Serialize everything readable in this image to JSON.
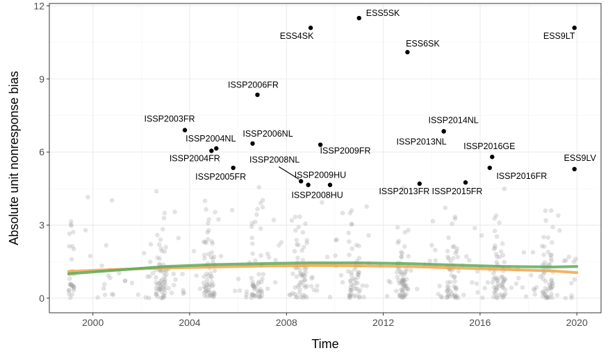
{
  "chart_data": {
    "type": "scatter",
    "title": "",
    "xlabel": "Time",
    "ylabel": "Absolute unit nonresponse bias",
    "xlim": [
      1998.2,
      2021.0
    ],
    "ylim": [
      -0.6,
      12.1
    ],
    "x_ticks": [
      2000,
      2004,
      2008,
      2012,
      2016,
      2020
    ],
    "y_ticks": [
      0,
      3,
      6,
      9,
      12
    ],
    "x_tick_labels": [
      "2000",
      "2004",
      "2008",
      "2012",
      "2016",
      "2020"
    ],
    "y_tick_labels": [
      "0",
      "3",
      "6",
      "9",
      "12"
    ],
    "grid": true,
    "legend": "none",
    "colors": {
      "background_points": "#999999",
      "highlight_points": "#000000",
      "smooth_orange": "#f5a54a",
      "smooth_green": "#5aaa5a",
      "grid_major": "#ebebeb",
      "panel_border": "#333333"
    },
    "labeled_points": [
      {
        "label": "ESS5SK",
        "x": 2011.0,
        "y": 11.5
      },
      {
        "label": "ESS4SK",
        "x": 2009.0,
        "y": 11.1
      },
      {
        "label": "ESS9LT",
        "x": 2019.9,
        "y": 11.1
      },
      {
        "label": "ESS6SK",
        "x": 2013.0,
        "y": 10.1
      },
      {
        "label": "ISSP2006FR",
        "x": 2006.8,
        "y": 8.35
      },
      {
        "label": "ISSP2003FR",
        "x": 2003.8,
        "y": 6.9
      },
      {
        "label": "ISSP2014NL",
        "x": 2014.5,
        "y": 6.85
      },
      {
        "label": "ISSP2013NL",
        "x": 2014.5,
        "y": 6.85
      },
      {
        "label": "ISSP2006NL",
        "x": 2006.6,
        "y": 6.35
      },
      {
        "label": "ISSP2009FR",
        "x": 2009.4,
        "y": 6.3
      },
      {
        "label": "ISSP2004NL",
        "x": 2005.1,
        "y": 6.15
      },
      {
        "label": "ISSP2004FR",
        "x": 2004.9,
        "y": 6.05
      },
      {
        "label": "ISSP2016GE",
        "x": 2016.5,
        "y": 5.8
      },
      {
        "label": "ISSP2005FR",
        "x": 2005.8,
        "y": 5.35
      },
      {
        "label": "ISSP2016FR",
        "x": 2016.4,
        "y": 5.35
      },
      {
        "label": "ESS9LV",
        "x": 2019.9,
        "y": 5.3
      },
      {
        "label": "ISSP2008NL",
        "x": 2008.6,
        "y": 4.8
      },
      {
        "label": "ISSP2015FR",
        "x": 2015.4,
        "y": 4.75
      },
      {
        "label": "ISSP2013FR",
        "x": 2013.5,
        "y": 4.7
      },
      {
        "label": "ISSP2008HU",
        "x": 2008.9,
        "y": 4.65
      },
      {
        "label": "ISSP2009HU",
        "x": 2009.8,
        "y": 4.65
      }
    ],
    "series": [
      {
        "x": [
          1999.0,
          2001.0,
          2003.0,
          2005.0,
          2007.0,
          2009.0,
          2011.0,
          2013.0,
          2015.0,
          2017.0,
          2019.0,
          2020.0
        ],
        "y": [
          1.1,
          1.18,
          1.24,
          1.28,
          1.32,
          1.34,
          1.33,
          1.3,
          1.24,
          1.18,
          1.12,
          1.05
        ]
      },
      {
        "x": [
          1999.0,
          2001.0,
          2003.0,
          2005.0,
          2007.0,
          2009.0,
          2011.0,
          2013.0,
          2015.0,
          2017.0,
          2019.0,
          2020.0
        ],
        "y": [
          1.0,
          1.15,
          1.3,
          1.38,
          1.42,
          1.45,
          1.45,
          1.42,
          1.36,
          1.3,
          1.28,
          1.3
        ]
      }
    ],
    "survey_years": [
      1999.0,
      2002.8,
      2004.8,
      2006.8,
      2008.6,
      2010.8,
      2012.8,
      2014.8,
      2016.8,
      2018.8
    ],
    "background_point_count": 700
  }
}
